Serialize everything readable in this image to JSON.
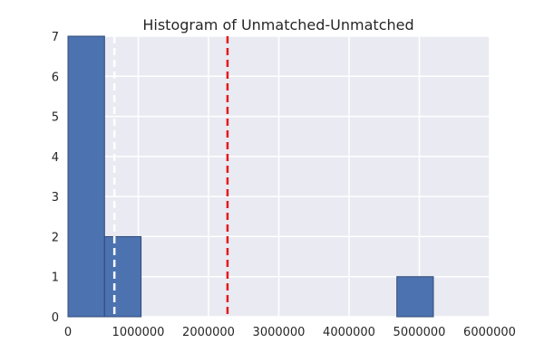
{
  "chart_data": {
    "type": "bar",
    "title": "Histogram of Unmatched-Unmatched",
    "xlabel": "",
    "ylabel": "",
    "xlim": [
      0,
      6000000
    ],
    "ylim": [
      0,
      7
    ],
    "x_ticks": [
      0,
      1000000,
      2000000,
      3000000,
      4000000,
      5000000,
      6000000
    ],
    "x_tick_labels": [
      "0",
      "1000000",
      "2000000",
      "3000000",
      "4000000",
      "5000000",
      "6000000"
    ],
    "y_ticks": [
      0,
      1,
      2,
      3,
      4,
      5,
      6,
      7
    ],
    "y_tick_labels": [
      "0",
      "1",
      "2",
      "3",
      "4",
      "5",
      "6",
      "7"
    ],
    "grid": true,
    "bins": [
      {
        "start": 0,
        "end": 520000,
        "count": 7
      },
      {
        "start": 520000,
        "end": 1040000,
        "count": 2
      },
      {
        "start": 4680000,
        "end": 5200000,
        "count": 1
      }
    ],
    "reference_lines": [
      {
        "x": 660000,
        "color": "#ffffff",
        "style": "dashed"
      },
      {
        "x": 2270000,
        "color": "#e31a1c",
        "style": "dashed"
      }
    ],
    "colors": {
      "bar_fill": "#4c72b0",
      "bar_edge": "#2f4a78",
      "plot_background": "#eaeaf2",
      "grid": "#ffffff"
    }
  }
}
